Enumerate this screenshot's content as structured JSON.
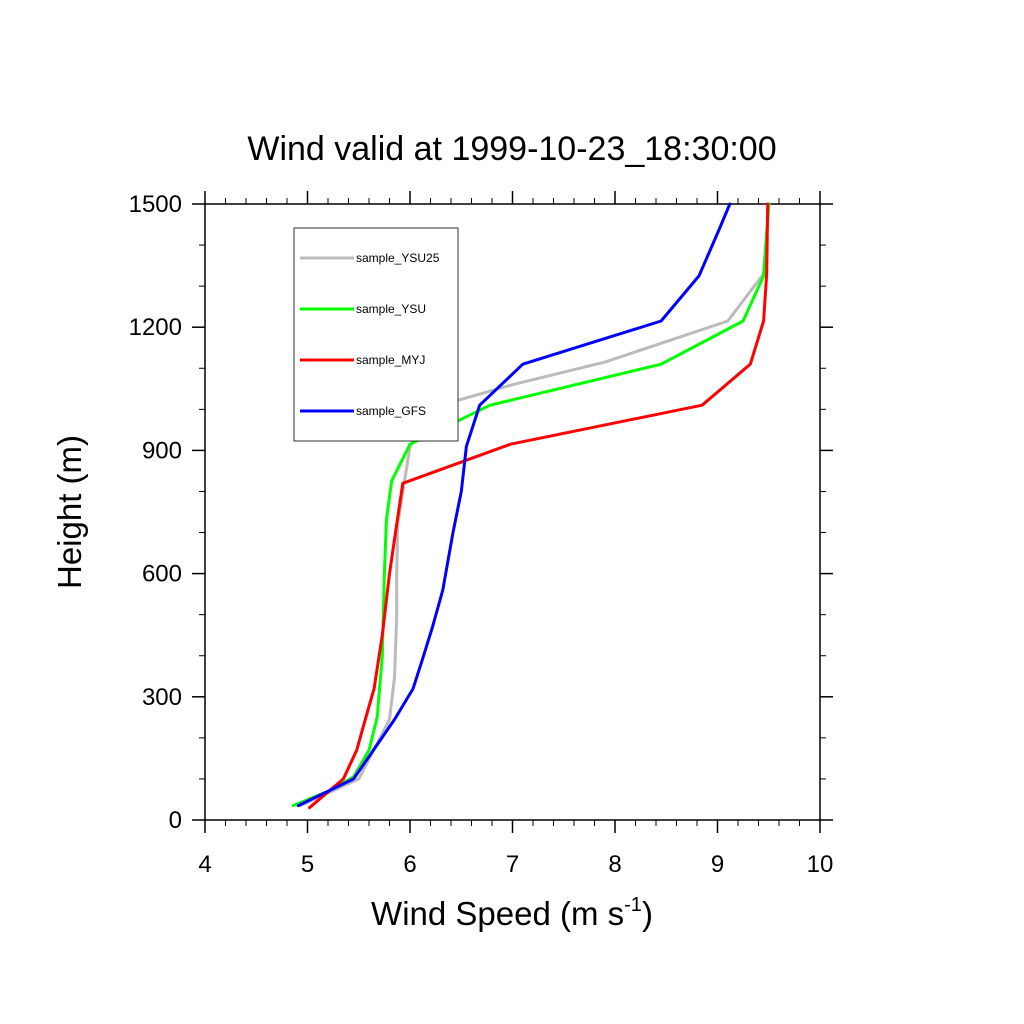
{
  "chart_data": {
    "type": "line",
    "title": "Wind valid at 1999-10-23_18:30:00",
    "xlabel": {
      "main": "Wind Speed (m s",
      "superscript": "-1",
      "close": ")"
    },
    "ylabel": "Height (m)",
    "xlim": [
      4,
      10
    ],
    "ylim": [
      0,
      1500
    ],
    "x_major_ticks": [
      4,
      5,
      6,
      7,
      8,
      9,
      10
    ],
    "x_tick_labels": [
      "4",
      "5",
      "6",
      "7",
      "8",
      "9",
      "10"
    ],
    "y_major_ticks": [
      0,
      300,
      600,
      900,
      1200,
      1500
    ],
    "y_tick_labels": [
      "0",
      "300",
      "600",
      "900",
      "1200",
      "1500"
    ],
    "grid": false,
    "legend_position": "top-left",
    "series": [
      {
        "name": "sample_YSU25",
        "color": "#bbbbbb",
        "x": [
          4.93,
          5.5,
          5.8,
          5.85,
          5.87,
          5.87,
          5.88,
          6.0,
          6.3,
          7.0,
          7.9,
          9.1,
          9.45,
          9.5
        ],
        "y": [
          35,
          100,
          245,
          350,
          500,
          600,
          720,
          910,
          1010,
          1060,
          1115,
          1215,
          1330,
          1500
        ]
      },
      {
        "name": "sample_YSU",
        "color": "#00ff00",
        "x": [
          4.86,
          5.2,
          5.45,
          5.6,
          5.68,
          5.73,
          5.75,
          5.77,
          5.82,
          6.0,
          6.78,
          8.45,
          9.25,
          9.45,
          9.5
        ],
        "y": [
          35,
          70,
          105,
          170,
          250,
          400,
          600,
          730,
          825,
          915,
          1010,
          1110,
          1215,
          1325,
          1500
        ]
      },
      {
        "name": "sample_MYJ",
        "color": "#ff0000",
        "x": [
          5.02,
          5.35,
          5.48,
          5.57,
          5.65,
          5.73,
          5.8,
          5.87,
          5.93,
          6.98,
          8.85,
          9.32,
          9.45,
          9.48,
          9.49
        ],
        "y": [
          30,
          100,
          170,
          250,
          320,
          450,
          600,
          720,
          820,
          915,
          1010,
          1110,
          1215,
          1330,
          1500
        ]
      },
      {
        "name": "sample_GFS",
        "color": "#0000ff",
        "x": [
          4.91,
          5.45,
          5.85,
          6.03,
          6.12,
          6.22,
          6.32,
          6.42,
          6.5,
          6.55,
          6.68,
          7.1,
          8.45,
          8.82,
          9.02,
          9.12
        ],
        "y": [
          35,
          100,
          245,
          320,
          390,
          470,
          560,
          700,
          800,
          910,
          1010,
          1110,
          1215,
          1325,
          1440,
          1500
        ]
      }
    ]
  }
}
